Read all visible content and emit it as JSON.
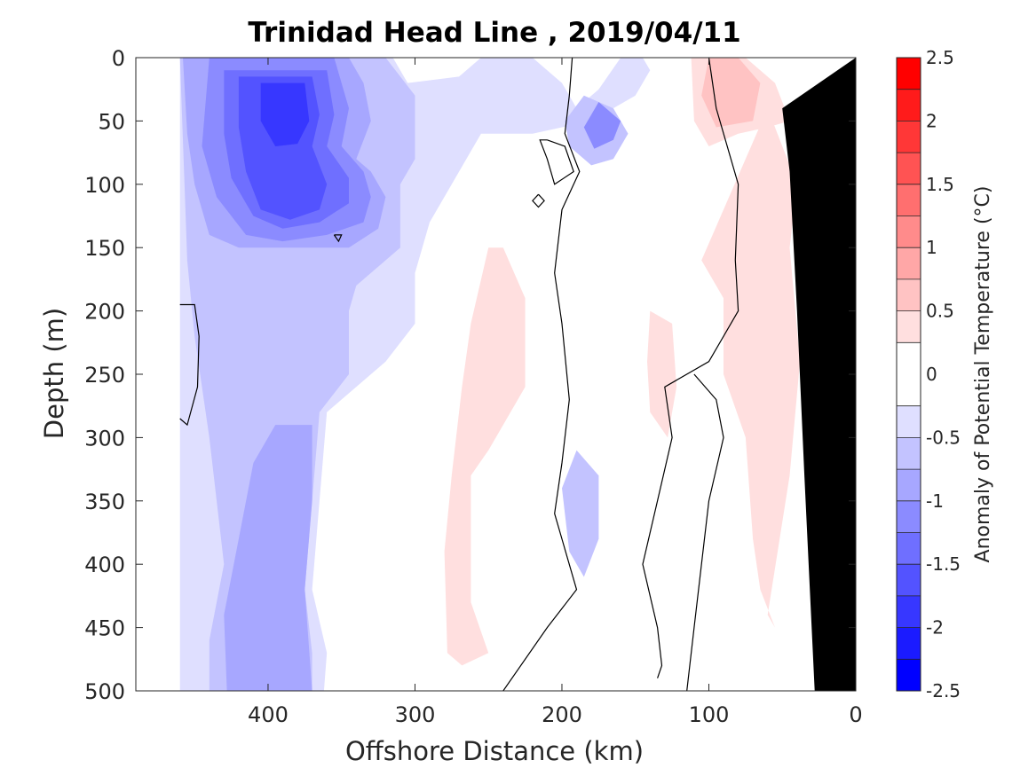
{
  "chart_data": {
    "type": "heatmap",
    "title": "Trinidad Head Line , 2019/04/11",
    "xlabel": "Offshore Distance (km)",
    "ylabel": "Depth (m)",
    "colorbar_label": "Anomaly of Potential Temperature (°C)",
    "xlim": [
      490,
      0
    ],
    "ylim": [
      0,
      500
    ],
    "x_reversed": true,
    "y_reversed": true,
    "x_ticks": [
      400,
      300,
      200,
      100,
      0
    ],
    "x_tick_labels": [
      "400",
      "300",
      "200",
      "100",
      "0"
    ],
    "y_ticks": [
      0,
      50,
      100,
      150,
      200,
      250,
      300,
      350,
      400,
      450,
      500
    ],
    "y_tick_labels": [
      "0",
      "50",
      "100",
      "150",
      "200",
      "250",
      "300",
      "350",
      "400",
      "450",
      "500"
    ],
    "colorbar_range": [
      -2.5,
      2.5
    ],
    "colorbar_ticks": [
      2.5,
      2,
      1.5,
      1,
      0.5,
      0,
      -0.5,
      -1,
      -1.5,
      -2,
      -2.5
    ],
    "colorbar_tick_labels": [
      "2.5",
      "2",
      "1.5",
      "1",
      "0.5",
      "0",
      "-0.5",
      "-1",
      "-1.5",
      "-2",
      "-2.5"
    ],
    "colorbar_levels": [
      {
        "from": 2.25,
        "to": 2.5,
        "color": "#ff0000"
      },
      {
        "from": 2.0,
        "to": 2.25,
        "color": "#ff1b1b"
      },
      {
        "from": 1.75,
        "to": 2.0,
        "color": "#ff3737"
      },
      {
        "from": 1.5,
        "to": 1.75,
        "color": "#ff5353"
      },
      {
        "from": 1.25,
        "to": 1.5,
        "color": "#ff6f6f"
      },
      {
        "from": 1.0,
        "to": 1.25,
        "color": "#ff8b8b"
      },
      {
        "from": 0.75,
        "to": 1.0,
        "color": "#ffa7a7"
      },
      {
        "from": 0.5,
        "to": 0.75,
        "color": "#ffc3c3"
      },
      {
        "from": 0.25,
        "to": 0.5,
        "color": "#ffdfdf"
      },
      {
        "from": -0.25,
        "to": 0.25,
        "color": "#ffffff"
      },
      {
        "from": -0.5,
        "to": -0.25,
        "color": "#dfdfff"
      },
      {
        "from": -0.75,
        "to": -0.5,
        "color": "#c3c3ff"
      },
      {
        "from": -1.0,
        "to": -0.75,
        "color": "#a7a7ff"
      },
      {
        "from": -1.25,
        "to": -1.0,
        "color": "#8b8bff"
      },
      {
        "from": -1.5,
        "to": -1.25,
        "color": "#6f6fff"
      },
      {
        "from": -1.75,
        "to": -1.5,
        "color": "#5353ff"
      },
      {
        "from": -2.0,
        "to": -1.75,
        "color": "#3737ff"
      },
      {
        "from": -2.25,
        "to": -2.0,
        "color": "#1b1bff"
      },
      {
        "from": -2.5,
        "to": -2.25,
        "color": "#0000ff"
      }
    ],
    "regions": [
      {
        "level": -0.25,
        "points": [
          [
            460,
            0
          ],
          [
            315,
            0
          ],
          [
            305,
            20
          ],
          [
            270,
            15
          ],
          [
            255,
            0
          ],
          [
            220,
            0
          ],
          [
            200,
            20
          ],
          [
            190,
            40
          ],
          [
            175,
            25
          ],
          [
            160,
            0
          ],
          [
            145,
            0
          ],
          [
            140,
            10
          ],
          [
            150,
            30
          ],
          [
            180,
            50
          ],
          [
            220,
            60
          ],
          [
            255,
            60
          ],
          [
            270,
            90
          ],
          [
            290,
            130
          ],
          [
            300,
            170
          ],
          [
            300,
            210
          ],
          [
            320,
            240
          ],
          [
            340,
            260
          ],
          [
            360,
            280
          ],
          [
            365,
            350
          ],
          [
            370,
            420
          ],
          [
            360,
            470
          ],
          [
            362,
            500
          ],
          [
            460,
            500
          ],
          [
            460,
            0
          ]
        ]
      },
      {
        "level": -0.5,
        "points": [
          [
            460,
            0
          ],
          [
            320,
            0
          ],
          [
            300,
            30
          ],
          [
            300,
            80
          ],
          [
            310,
            100
          ],
          [
            310,
            150
          ],
          [
            320,
            160
          ],
          [
            340,
            180
          ],
          [
            345,
            200
          ],
          [
            345,
            250
          ],
          [
            365,
            280
          ],
          [
            370,
            350
          ],
          [
            375,
            420
          ],
          [
            370,
            470
          ],
          [
            370,
            500
          ],
          [
            440,
            500
          ],
          [
            440,
            460
          ],
          [
            430,
            400
          ],
          [
            440,
            300
          ],
          [
            450,
            220
          ],
          [
            455,
            160
          ],
          [
            460,
            0
          ]
        ]
      },
      {
        "level": -0.5,
        "points": [
          [
            185,
            30
          ],
          [
            165,
            40
          ],
          [
            155,
            60
          ],
          [
            165,
            80
          ],
          [
            180,
            85
          ],
          [
            195,
            70
          ],
          [
            198,
            50
          ],
          [
            185,
            30
          ]
        ]
      },
      {
        "level": -0.5,
        "points": [
          [
            190,
            310
          ],
          [
            175,
            330
          ],
          [
            175,
            380
          ],
          [
            185,
            410
          ],
          [
            195,
            390
          ],
          [
            200,
            340
          ],
          [
            190,
            310
          ]
        ]
      },
      {
        "level": -0.75,
        "points": [
          [
            458,
            0
          ],
          [
            345,
            0
          ],
          [
            335,
            20
          ],
          [
            330,
            50
          ],
          [
            340,
            80
          ],
          [
            330,
            90
          ],
          [
            320,
            110
          ],
          [
            325,
            135
          ],
          [
            345,
            150
          ],
          [
            365,
            150
          ],
          [
            395,
            150
          ],
          [
            420,
            150
          ],
          [
            440,
            140
          ],
          [
            450,
            100
          ],
          [
            455,
            60
          ],
          [
            458,
            0
          ]
        ]
      },
      {
        "level": -0.75,
        "points": [
          [
            395,
            290
          ],
          [
            370,
            290
          ],
          [
            370,
            350
          ],
          [
            375,
            420
          ],
          [
            370,
            500
          ],
          [
            428,
            500
          ],
          [
            430,
            440
          ],
          [
            420,
            380
          ],
          [
            410,
            320
          ],
          [
            395,
            290
          ]
        ]
      },
      {
        "level": -1.0,
        "points": [
          [
            440,
            0
          ],
          [
            355,
            0
          ],
          [
            345,
            40
          ],
          [
            350,
            70
          ],
          [
            335,
            90
          ],
          [
            330,
            110
          ],
          [
            335,
            130
          ],
          [
            360,
            140
          ],
          [
            390,
            145
          ],
          [
            415,
            140
          ],
          [
            435,
            110
          ],
          [
            445,
            70
          ],
          [
            440,
            0
          ]
        ]
      },
      {
        "level": -1.0,
        "points": [
          [
            175,
            35
          ],
          [
            160,
            50
          ],
          [
            165,
            65
          ],
          [
            178,
            72
          ],
          [
            185,
            55
          ],
          [
            175,
            35
          ]
        ]
      },
      {
        "level": -1.25,
        "points": [
          [
            430,
            10
          ],
          [
            360,
            10
          ],
          [
            355,
            45
          ],
          [
            360,
            70
          ],
          [
            345,
            95
          ],
          [
            345,
            115
          ],
          [
            365,
            130
          ],
          [
            390,
            135
          ],
          [
            410,
            125
          ],
          [
            425,
            95
          ],
          [
            430,
            60
          ],
          [
            430,
            10
          ]
        ]
      },
      {
        "level": -1.5,
        "points": [
          [
            420,
            15
          ],
          [
            370,
            15
          ],
          [
            365,
            45
          ],
          [
            370,
            70
          ],
          [
            360,
            100
          ],
          [
            365,
            120
          ],
          [
            385,
            128
          ],
          [
            405,
            120
          ],
          [
            415,
            90
          ],
          [
            420,
            55
          ],
          [
            420,
            15
          ]
        ]
      },
      {
        "level": -1.75,
        "points": [
          [
            405,
            20
          ],
          [
            375,
            20
          ],
          [
            372,
            50
          ],
          [
            380,
            68
          ],
          [
            395,
            70
          ],
          [
            405,
            50
          ],
          [
            405,
            20
          ]
        ]
      },
      {
        "level": 0.25,
        "points": [
          [
            112,
            0
          ],
          [
            75,
            0
          ],
          [
            55,
            20
          ],
          [
            45,
            50
          ],
          [
            60,
            55
          ],
          [
            80,
            60
          ],
          [
            100,
            70
          ],
          [
            110,
            50
          ],
          [
            112,
            0
          ]
        ]
      },
      {
        "level": 0.25,
        "points": [
          [
            250,
            150
          ],
          [
            240,
            150
          ],
          [
            225,
            190
          ],
          [
            225,
            260
          ],
          [
            240,
            290
          ],
          [
            250,
            310
          ],
          [
            262,
            330
          ],
          [
            262,
            430
          ],
          [
            250,
            470
          ],
          [
            268,
            480
          ],
          [
            278,
            470
          ],
          [
            280,
            390
          ],
          [
            275,
            330
          ],
          [
            268,
            260
          ],
          [
            262,
            210
          ],
          [
            250,
            150
          ]
        ]
      },
      {
        "level": 0.25,
        "points": [
          [
            140,
            200
          ],
          [
            125,
            210
          ],
          [
            122,
            260
          ],
          [
            128,
            300
          ],
          [
            140,
            280
          ],
          [
            142,
            240
          ],
          [
            140,
            200
          ]
        ]
      },
      {
        "level": 0.25,
        "points": [
          [
            105,
            160
          ],
          [
            90,
            190
          ],
          [
            90,
            250
          ],
          [
            75,
            300
          ],
          [
            70,
            380
          ],
          [
            65,
            420
          ],
          [
            55,
            450
          ],
          [
            60,
            440
          ],
          [
            45,
            330
          ],
          [
            38,
            240
          ],
          [
            45,
            150
          ],
          [
            40,
            100
          ],
          [
            60,
            40
          ],
          [
            105,
            160
          ]
        ]
      },
      {
        "level": 0.5,
        "points": [
          [
            100,
            0
          ],
          [
            80,
            0
          ],
          [
            65,
            20
          ],
          [
            70,
            50
          ],
          [
            95,
            55
          ],
          [
            105,
            30
          ],
          [
            100,
            0
          ]
        ]
      }
    ],
    "zero_contours": [
      [
        [
          460,
          195
        ],
        [
          450,
          195
        ],
        [
          447,
          220
        ],
        [
          448,
          260
        ],
        [
          455,
          290
        ],
        [
          460,
          285
        ]
      ],
      [
        [
          355,
          140
        ],
        [
          352,
          145
        ],
        [
          350,
          140
        ],
        [
          355,
          140
        ]
      ],
      [
        [
          210,
          65
        ],
        [
          198,
          70
        ],
        [
          192,
          90
        ],
        [
          205,
          100
        ],
        [
          210,
          80
        ],
        [
          215,
          65
        ],
        [
          210,
          65
        ]
      ],
      [
        [
          216,
          108
        ],
        [
          212,
          113
        ],
        [
          216,
          118
        ],
        [
          220,
          113
        ],
        [
          216,
          108
        ]
      ],
      [
        [
          193,
          0
        ],
        [
          195,
          30
        ],
        [
          198,
          60
        ],
        [
          188,
          90
        ],
        [
          200,
          120
        ],
        [
          205,
          170
        ],
        [
          200,
          210
        ],
        [
          195,
          270
        ],
        [
          200,
          320
        ],
        [
          205,
          360
        ],
        [
          190,
          420
        ],
        [
          210,
          450
        ],
        [
          240,
          500
        ]
      ],
      [
        [
          100,
          0
        ],
        [
          95,
          40
        ],
        [
          80,
          100
        ],
        [
          82,
          160
        ],
        [
          80,
          200
        ],
        [
          100,
          240
        ],
        [
          130,
          260
        ],
        [
          125,
          300
        ],
        [
          135,
          350
        ],
        [
          145,
          400
        ],
        [
          135,
          450
        ],
        [
          132,
          480
        ],
        [
          135,
          490
        ]
      ],
      [
        [
          110,
          250
        ],
        [
          95,
          270
        ],
        [
          90,
          300
        ],
        [
          100,
          350
        ],
        [
          105,
          400
        ],
        [
          110,
          450
        ],
        [
          115,
          500
        ]
      ],
      [
        [
          35,
          250
        ],
        [
          28,
          280
        ],
        [
          30,
          300
        ]
      ]
    ],
    "land_mask": [
      [
        0,
        0
      ],
      [
        0,
        500
      ],
      [
        28,
        500
      ],
      [
        35,
        330
      ],
      [
        40,
        200
      ],
      [
        45,
        90
      ],
      [
        50,
        40
      ],
      [
        0,
        0
      ]
    ]
  }
}
